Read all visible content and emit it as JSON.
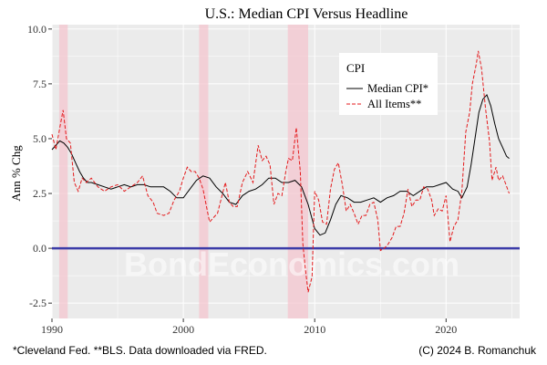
{
  "chart_data": {
    "type": "line",
    "title": "U.S.: Median CPI Versus Headline",
    "xlabel": "",
    "ylabel": "Ann % Chg",
    "xlim": [
      1990,
      2025.6
    ],
    "ylim": [
      -3.2,
      10.2
    ],
    "x_ticks": [
      1990,
      2000,
      2010,
      2020
    ],
    "x_tick_labels": [
      "1990",
      "2000",
      "2010",
      "2020"
    ],
    "y_ticks": [
      -2.5,
      0.0,
      2.5,
      5.0,
      7.5,
      10.0
    ],
    "y_tick_labels": [
      "-2.5",
      "0.0",
      "2.5",
      "5.0",
      "7.5",
      "10.0"
    ],
    "grid": true,
    "legend": {
      "title": "CPI",
      "placement": "top-right"
    },
    "zero_line": {
      "y": 0,
      "color": "#3b3ba8"
    },
    "recessions": [
      [
        1990.55,
        1991.2
      ],
      [
        2001.2,
        2001.9
      ],
      [
        2007.95,
        2009.5
      ]
    ],
    "watermark": "BondEconomics.com",
    "series": [
      {
        "name": "Median CPI*",
        "color": "#000000",
        "dash": "solid",
        "points": [
          [
            1990.0,
            4.5
          ],
          [
            1990.3,
            4.7
          ],
          [
            1990.6,
            4.9
          ],
          [
            1990.9,
            4.8
          ],
          [
            1991.2,
            4.6
          ],
          [
            1991.5,
            4.3
          ],
          [
            1991.8,
            3.9
          ],
          [
            1992.1,
            3.5
          ],
          [
            1992.4,
            3.2
          ],
          [
            1992.7,
            3.0
          ],
          [
            1993.0,
            3.0
          ],
          [
            1993.5,
            2.9
          ],
          [
            1994.0,
            2.8
          ],
          [
            1994.5,
            2.7
          ],
          [
            1995.0,
            2.8
          ],
          [
            1995.5,
            2.9
          ],
          [
            1996.0,
            2.8
          ],
          [
            1996.5,
            2.9
          ],
          [
            1997.0,
            2.9
          ],
          [
            1997.5,
            2.8
          ],
          [
            1998.0,
            2.8
          ],
          [
            1998.5,
            2.8
          ],
          [
            1999.0,
            2.6
          ],
          [
            1999.5,
            2.3
          ],
          [
            2000.0,
            2.3
          ],
          [
            2000.5,
            2.7
          ],
          [
            2001.0,
            3.1
          ],
          [
            2001.5,
            3.3
          ],
          [
            2002.0,
            3.2
          ],
          [
            2002.5,
            2.8
          ],
          [
            2003.0,
            2.5
          ],
          [
            2003.5,
            2.1
          ],
          [
            2004.0,
            2.0
          ],
          [
            2004.5,
            2.4
          ],
          [
            2005.0,
            2.6
          ],
          [
            2005.5,
            2.7
          ],
          [
            2006.0,
            2.9
          ],
          [
            2006.5,
            3.2
          ],
          [
            2007.0,
            3.2
          ],
          [
            2007.5,
            3.0
          ],
          [
            2008.0,
            3.0
          ],
          [
            2008.5,
            3.1
          ],
          [
            2009.0,
            2.8
          ],
          [
            2009.5,
            2.0
          ],
          [
            2010.0,
            0.9
          ],
          [
            2010.4,
            0.6
          ],
          [
            2010.8,
            0.7
          ],
          [
            2011.2,
            1.3
          ],
          [
            2011.6,
            2.0
          ],
          [
            2012.0,
            2.4
          ],
          [
            2012.5,
            2.3
          ],
          [
            2013.0,
            2.1
          ],
          [
            2013.5,
            2.1
          ],
          [
            2014.0,
            2.2
          ],
          [
            2014.5,
            2.3
          ],
          [
            2015.0,
            2.1
          ],
          [
            2015.5,
            2.3
          ],
          [
            2016.0,
            2.4
          ],
          [
            2016.5,
            2.6
          ],
          [
            2017.0,
            2.6
          ],
          [
            2017.5,
            2.4
          ],
          [
            2018.0,
            2.6
          ],
          [
            2018.5,
            2.8
          ],
          [
            2019.0,
            2.8
          ],
          [
            2019.5,
            2.9
          ],
          [
            2020.0,
            3.0
          ],
          [
            2020.5,
            2.7
          ],
          [
            2020.9,
            2.6
          ],
          [
            2021.2,
            2.3
          ],
          [
            2021.6,
            2.8
          ],
          [
            2021.9,
            3.8
          ],
          [
            2022.2,
            5.0
          ],
          [
            2022.5,
            6.2
          ],
          [
            2022.8,
            6.8
          ],
          [
            2023.1,
            7.0
          ],
          [
            2023.4,
            6.5
          ],
          [
            2023.7,
            5.7
          ],
          [
            2024.0,
            5.0
          ],
          [
            2024.3,
            4.6
          ],
          [
            2024.6,
            4.2
          ],
          [
            2024.8,
            4.1
          ]
        ]
      },
      {
        "name": "All Items**",
        "color": "#e41a1c",
        "dash": "dashed",
        "points": [
          [
            1990.0,
            5.2
          ],
          [
            1990.3,
            4.5
          ],
          [
            1990.6,
            5.5
          ],
          [
            1990.85,
            6.3
          ],
          [
            1991.1,
            5.0
          ],
          [
            1991.4,
            4.8
          ],
          [
            1991.7,
            3.0
          ],
          [
            1992.0,
            2.6
          ],
          [
            1992.3,
            3.2
          ],
          [
            1992.6,
            3.0
          ],
          [
            1993.0,
            3.2
          ],
          [
            1993.5,
            2.8
          ],
          [
            1994.0,
            2.6
          ],
          [
            1994.5,
            2.8
          ],
          [
            1995.0,
            2.9
          ],
          [
            1995.5,
            2.6
          ],
          [
            1996.0,
            2.8
          ],
          [
            1996.5,
            3.0
          ],
          [
            1996.9,
            3.3
          ],
          [
            1997.3,
            2.4
          ],
          [
            1997.7,
            2.1
          ],
          [
            1998.0,
            1.6
          ],
          [
            1998.5,
            1.5
          ],
          [
            1998.9,
            1.6
          ],
          [
            1999.3,
            2.2
          ],
          [
            1999.7,
            2.6
          ],
          [
            2000.0,
            3.2
          ],
          [
            2000.3,
            3.7
          ],
          [
            2000.6,
            3.5
          ],
          [
            2000.9,
            3.5
          ],
          [
            2001.2,
            3.2
          ],
          [
            2001.5,
            2.7
          ],
          [
            2001.8,
            1.8
          ],
          [
            2002.0,
            1.2
          ],
          [
            2002.3,
            1.4
          ],
          [
            2002.6,
            1.6
          ],
          [
            2002.9,
            2.3
          ],
          [
            2003.2,
            3.0
          ],
          [
            2003.5,
            2.1
          ],
          [
            2003.8,
            1.9
          ],
          [
            2004.1,
            1.9
          ],
          [
            2004.5,
            3.0
          ],
          [
            2004.9,
            3.5
          ],
          [
            2005.3,
            3.0
          ],
          [
            2005.7,
            4.7
          ],
          [
            2006.0,
            4.0
          ],
          [
            2006.3,
            4.2
          ],
          [
            2006.6,
            3.8
          ],
          [
            2006.9,
            2.0
          ],
          [
            2007.2,
            2.5
          ],
          [
            2007.5,
            2.4
          ],
          [
            2007.8,
            3.5
          ],
          [
            2008.0,
            4.1
          ],
          [
            2008.3,
            4.0
          ],
          [
            2008.6,
            5.5
          ],
          [
            2008.9,
            3.5
          ],
          [
            2009.1,
            0.2
          ],
          [
            2009.3,
            -1.0
          ],
          [
            2009.5,
            -2.0
          ],
          [
            2009.8,
            -1.3
          ],
          [
            2010.0,
            2.6
          ],
          [
            2010.3,
            2.2
          ],
          [
            2010.6,
            1.2
          ],
          [
            2010.9,
            1.1
          ],
          [
            2011.2,
            2.7
          ],
          [
            2011.5,
            3.6
          ],
          [
            2011.8,
            3.9
          ],
          [
            2012.1,
            2.9
          ],
          [
            2012.4,
            1.7
          ],
          [
            2012.7,
            2.0
          ],
          [
            2013.0,
            1.6
          ],
          [
            2013.3,
            1.1
          ],
          [
            2013.6,
            1.5
          ],
          [
            2013.9,
            1.5
          ],
          [
            2014.2,
            2.0
          ],
          [
            2014.5,
            2.1
          ],
          [
            2014.8,
            1.3
          ],
          [
            2015.0,
            -0.1
          ],
          [
            2015.3,
            0.0
          ],
          [
            2015.6,
            0.2
          ],
          [
            2015.9,
            0.5
          ],
          [
            2016.2,
            1.0
          ],
          [
            2016.5,
            1.0
          ],
          [
            2016.8,
            1.6
          ],
          [
            2017.1,
            2.7
          ],
          [
            2017.4,
            1.9
          ],
          [
            2017.7,
            2.2
          ],
          [
            2018.0,
            2.2
          ],
          [
            2018.3,
            2.8
          ],
          [
            2018.6,
            2.7
          ],
          [
            2018.9,
            2.2
          ],
          [
            2019.1,
            1.5
          ],
          [
            2019.4,
            1.8
          ],
          [
            2019.7,
            1.7
          ],
          [
            2020.0,
            2.4
          ],
          [
            2020.3,
            0.3
          ],
          [
            2020.6,
            1.0
          ],
          [
            2020.9,
            1.3
          ],
          [
            2021.2,
            2.6
          ],
          [
            2021.5,
            5.3
          ],
          [
            2021.8,
            6.2
          ],
          [
            2022.0,
            7.5
          ],
          [
            2022.3,
            8.4
          ],
          [
            2022.45,
            9.0
          ],
          [
            2022.7,
            8.2
          ],
          [
            2023.0,
            6.4
          ],
          [
            2023.3,
            4.9
          ],
          [
            2023.5,
            3.1
          ],
          [
            2023.8,
            3.7
          ],
          [
            2024.0,
            3.1
          ],
          [
            2024.3,
            3.3
          ],
          [
            2024.5,
            3.0
          ],
          [
            2024.8,
            2.5
          ]
        ]
      }
    ]
  },
  "footer": {
    "source_note": "*Cleveland Fed. **BLS. Data downloaded via FRED.",
    "copyright": "(C) 2024 B. Romanchuk"
  }
}
